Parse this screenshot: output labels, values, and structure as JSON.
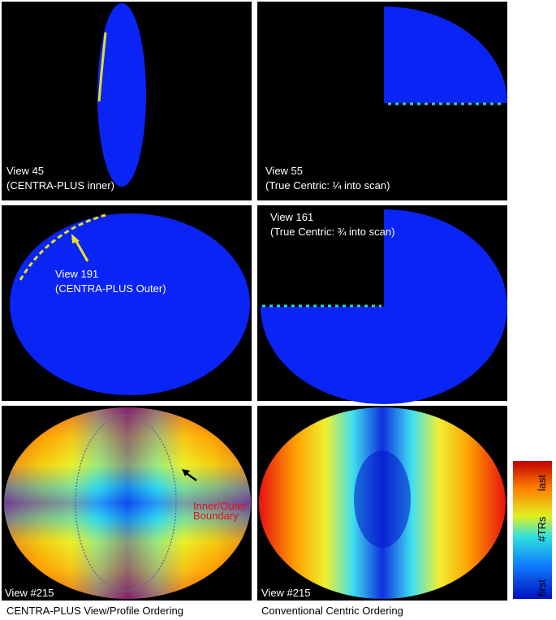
{
  "panels": [
    {
      "lines": [
        "View 45",
        "(CENTRA-PLUS inner)"
      ]
    },
    {
      "lines": [
        "View 55",
        "(True Centric: ¼ into scan)"
      ]
    },
    {
      "lines": [
        "View 191",
        "(CENTRA-PLUS Outer)"
      ]
    },
    {
      "lines": [
        "View 161",
        "(True Centric: ¾ into scan)"
      ]
    },
    {
      "lines": [
        "View #215"
      ],
      "annotation": [
        "Inner/Outer",
        "Boundary"
      ]
    },
    {
      "lines": [
        "View #215"
      ]
    }
  ],
  "captions": [
    "CENTRA-PLUS View/Profile Ordering",
    "Conventional Centric Ordering"
  ],
  "colorbar": {
    "top": "last",
    "middle": "#TRs",
    "bottom": "first"
  }
}
